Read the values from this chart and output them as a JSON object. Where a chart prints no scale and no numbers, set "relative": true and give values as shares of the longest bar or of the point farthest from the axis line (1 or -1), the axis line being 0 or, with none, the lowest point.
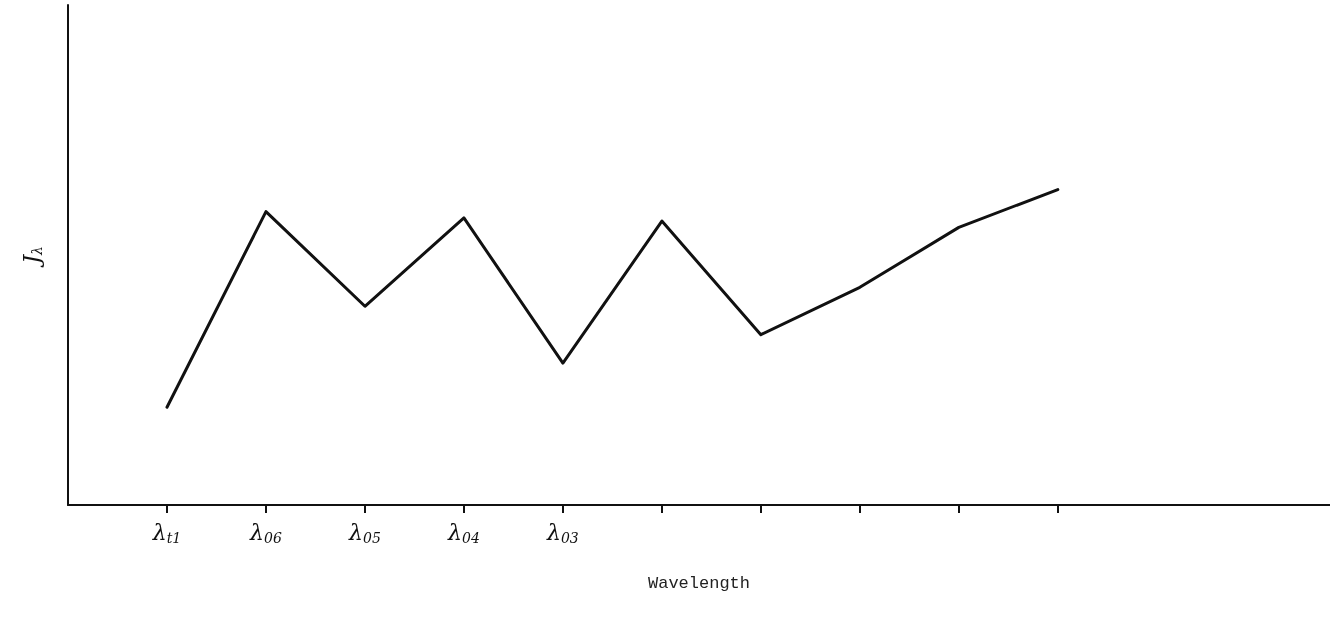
{
  "chart_data": {
    "type": "line",
    "relative": true,
    "xlabel": "Wavelength",
    "ylabel": "J$_{λ}$",
    "categories": [
      "λ$_{t1}$",
      "λ$_{06}$",
      "λ$_{05}$",
      "λ$_{04}$",
      "λ$_{03}$",
      null,
      null,
      null,
      null,
      null
    ],
    "series": [
      {
        "color": "#111111",
        "values": [
          0.31,
          0.93,
          0.63,
          0.91,
          0.45,
          0.9,
          0.54,
          0.69,
          0.88,
          1.0
        ]
      }
    ],
    "marker": "none",
    "line_style": "solid",
    "grid": false
  }
}
